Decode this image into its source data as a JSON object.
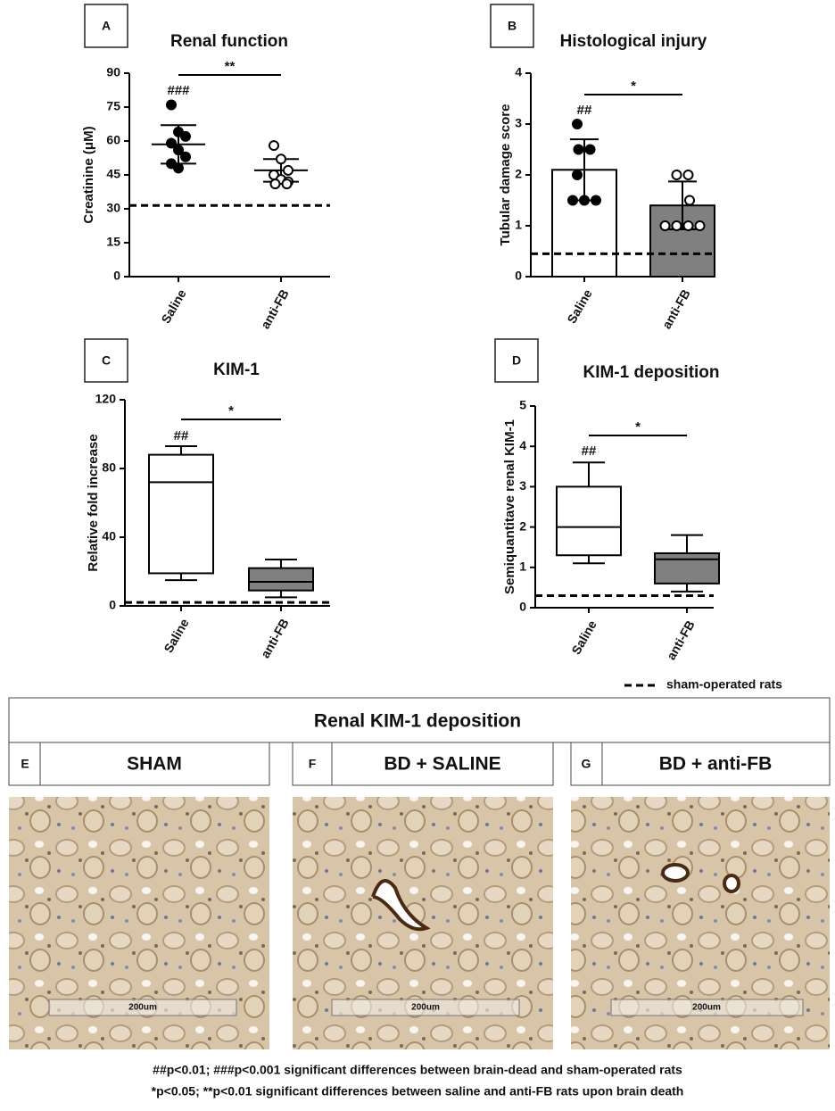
{
  "chart_data": [
    {
      "type": "scatter",
      "panel": "A",
      "title": "Renal function",
      "ylabel": "Creatinine (μM)",
      "categories": [
        "Saline",
        "anti-FB"
      ],
      "ylim": [
        0,
        90
      ],
      "yticks": [
        0,
        15,
        30,
        45,
        60,
        75,
        90
      ],
      "points": [
        [
          76,
          64,
          62,
          59,
          56,
          53,
          50,
          48
        ],
        [
          58,
          52,
          47,
          45,
          43,
          42,
          41,
          41
        ]
      ],
      "point_fills": [
        "#000000",
        "#ffffff"
      ],
      "mean": [
        58.5,
        47
      ],
      "sd": [
        8.5,
        5
      ],
      "reference": 31.5,
      "group_labels": [
        "###",
        null
      ],
      "significance": "**"
    },
    {
      "type": "bar",
      "panel": "B",
      "title": "Histological injury",
      "ylabel": "Tubular damage score",
      "categories": [
        "Saline",
        "anti-FB"
      ],
      "ylim": [
        0,
        4
      ],
      "yticks": [
        0,
        1,
        2,
        3,
        4
      ],
      "values": [
        2.1,
        1.4
      ],
      "sd": [
        0.6,
        0.47
      ],
      "colors": [
        "#ffffff",
        "#808080"
      ],
      "points": [
        [
          3,
          2.5,
          2.5,
          2,
          1.5,
          1.5,
          1.5
        ],
        [
          2,
          2,
          1.5,
          1,
          1,
          1,
          1
        ]
      ],
      "point_fills": [
        "#000000",
        "#ffffff"
      ],
      "reference": 0.45,
      "group_labels": [
        "##",
        null
      ],
      "significance": "*"
    },
    {
      "type": "box",
      "panel": "C",
      "title": "KIM-1",
      "ylabel": "Relative fold increase",
      "categories": [
        "Saline",
        "anti-FB"
      ],
      "ylim": [
        0,
        120
      ],
      "yticks": [
        0,
        40,
        80,
        120
      ],
      "boxes": [
        {
          "min": 15,
          "q1": 19,
          "median": 72,
          "q3": 88,
          "max": 93
        },
        {
          "min": 5,
          "q1": 9,
          "median": 14,
          "q3": 22,
          "max": 27
        }
      ],
      "colors": [
        "#ffffff",
        "#808080"
      ],
      "reference": 2,
      "group_labels": [
        "##",
        null
      ],
      "significance": "*"
    },
    {
      "type": "box",
      "panel": "D",
      "title": "KIM-1 deposition",
      "ylabel": "Semiquantitave renal KIM-1",
      "categories": [
        "Saline",
        "anti-FB"
      ],
      "ylim": [
        0,
        5
      ],
      "yticks": [
        0,
        1,
        2,
        3,
        4,
        5
      ],
      "boxes": [
        {
          "min": 1.1,
          "q1": 1.3,
          "median": 2,
          "q3": 3,
          "max": 3.6
        },
        {
          "min": 0.4,
          "q1": 0.6,
          "median": 1.2,
          "q3": 1.35,
          "max": 1.8
        }
      ],
      "colors": [
        "#ffffff",
        "#808080"
      ],
      "reference": 0.3,
      "group_labels": [
        "##",
        null
      ],
      "significance": "*"
    }
  ],
  "legend": {
    "label": "sham-operated rats"
  },
  "images": {
    "title": "Renal KIM-1 deposition",
    "panels": [
      {
        "letter": "E",
        "title": "SHAM",
        "scale": "200um"
      },
      {
        "letter": "F",
        "title": "BD + SALINE",
        "scale": "200um"
      },
      {
        "letter": "G",
        "title": "BD + anti-FB",
        "scale": "200um"
      }
    ]
  },
  "footnotes": [
    "##p<0.01; ###p<0.001 significant differences between brain-dead and sham-operated rats",
    "*p<0.05; **p<0.01 significant differences between saline and anti-FB rats upon brain death"
  ]
}
